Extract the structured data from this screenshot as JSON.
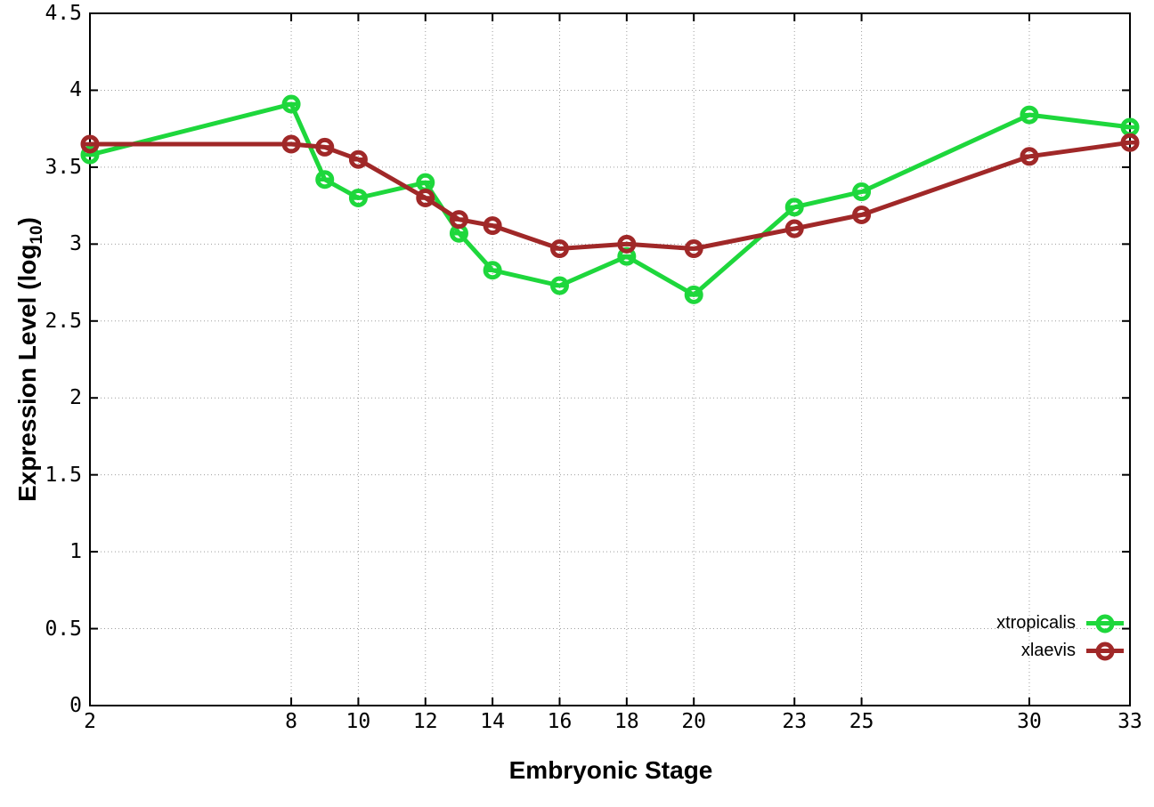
{
  "figure": {
    "background": "#ffffff",
    "border_color": "#000000",
    "grid_color": "#9e9e9e",
    "text_color": "#000000"
  },
  "chart_data": {
    "type": "line",
    "title": "",
    "xlabel": "Embryonic Stage",
    "ylabel": "Expression Level (log10)",
    "ylabel_prefix": "Expression Level (log",
    "ylabel_sub": "10",
    "ylabel_suffix": ")",
    "xlim": [
      2,
      33
    ],
    "ylim": [
      0,
      4.5
    ],
    "grid": true,
    "legend_position": "inside-bottom-right",
    "marker": "open-circle-with-errorbar-cap",
    "x_ticks": [
      {
        "v": 2,
        "label": "2"
      },
      {
        "v": 8,
        "label": "8"
      },
      {
        "v": 10,
        "label": "10"
      },
      {
        "v": 12,
        "label": "12"
      },
      {
        "v": 14,
        "label": "14"
      },
      {
        "v": 16,
        "label": "16"
      },
      {
        "v": 18,
        "label": "18"
      },
      {
        "v": 20,
        "label": "20"
      },
      {
        "v": 23,
        "label": "23"
      },
      {
        "v": 25,
        "label": "25"
      },
      {
        "v": 30,
        "label": "30"
      },
      {
        "v": 33,
        "label": "33"
      }
    ],
    "y_ticks": [
      {
        "v": 0,
        "label": "0"
      },
      {
        "v": 0.5,
        "label": "0.5"
      },
      {
        "v": 1,
        "label": "1"
      },
      {
        "v": 1.5,
        "label": "1.5"
      },
      {
        "v": 2,
        "label": "2"
      },
      {
        "v": 2.5,
        "label": "2.5"
      },
      {
        "v": 3,
        "label": "3"
      },
      {
        "v": 3.5,
        "label": "3.5"
      },
      {
        "v": 4,
        "label": "4"
      },
      {
        "v": 4.5,
        "label": "4.5"
      }
    ],
    "x": [
      2,
      8,
      9,
      10,
      12,
      13,
      14,
      16,
      18,
      20,
      23,
      25,
      30,
      33
    ],
    "series": [
      {
        "name": "xtropicalis",
        "color": "#1ed73c",
        "values": [
          3.58,
          3.91,
          3.42,
          3.3,
          3.4,
          3.07,
          2.83,
          2.73,
          2.92,
          2.67,
          3.24,
          3.34,
          3.84,
          3.76
        ]
      },
      {
        "name": "xlaevis",
        "color": "#a02828",
        "values": [
          3.65,
          3.65,
          3.63,
          3.55,
          3.3,
          3.16,
          3.12,
          2.97,
          3.0,
          2.97,
          3.1,
          3.19,
          3.57,
          3.66
        ]
      }
    ]
  }
}
